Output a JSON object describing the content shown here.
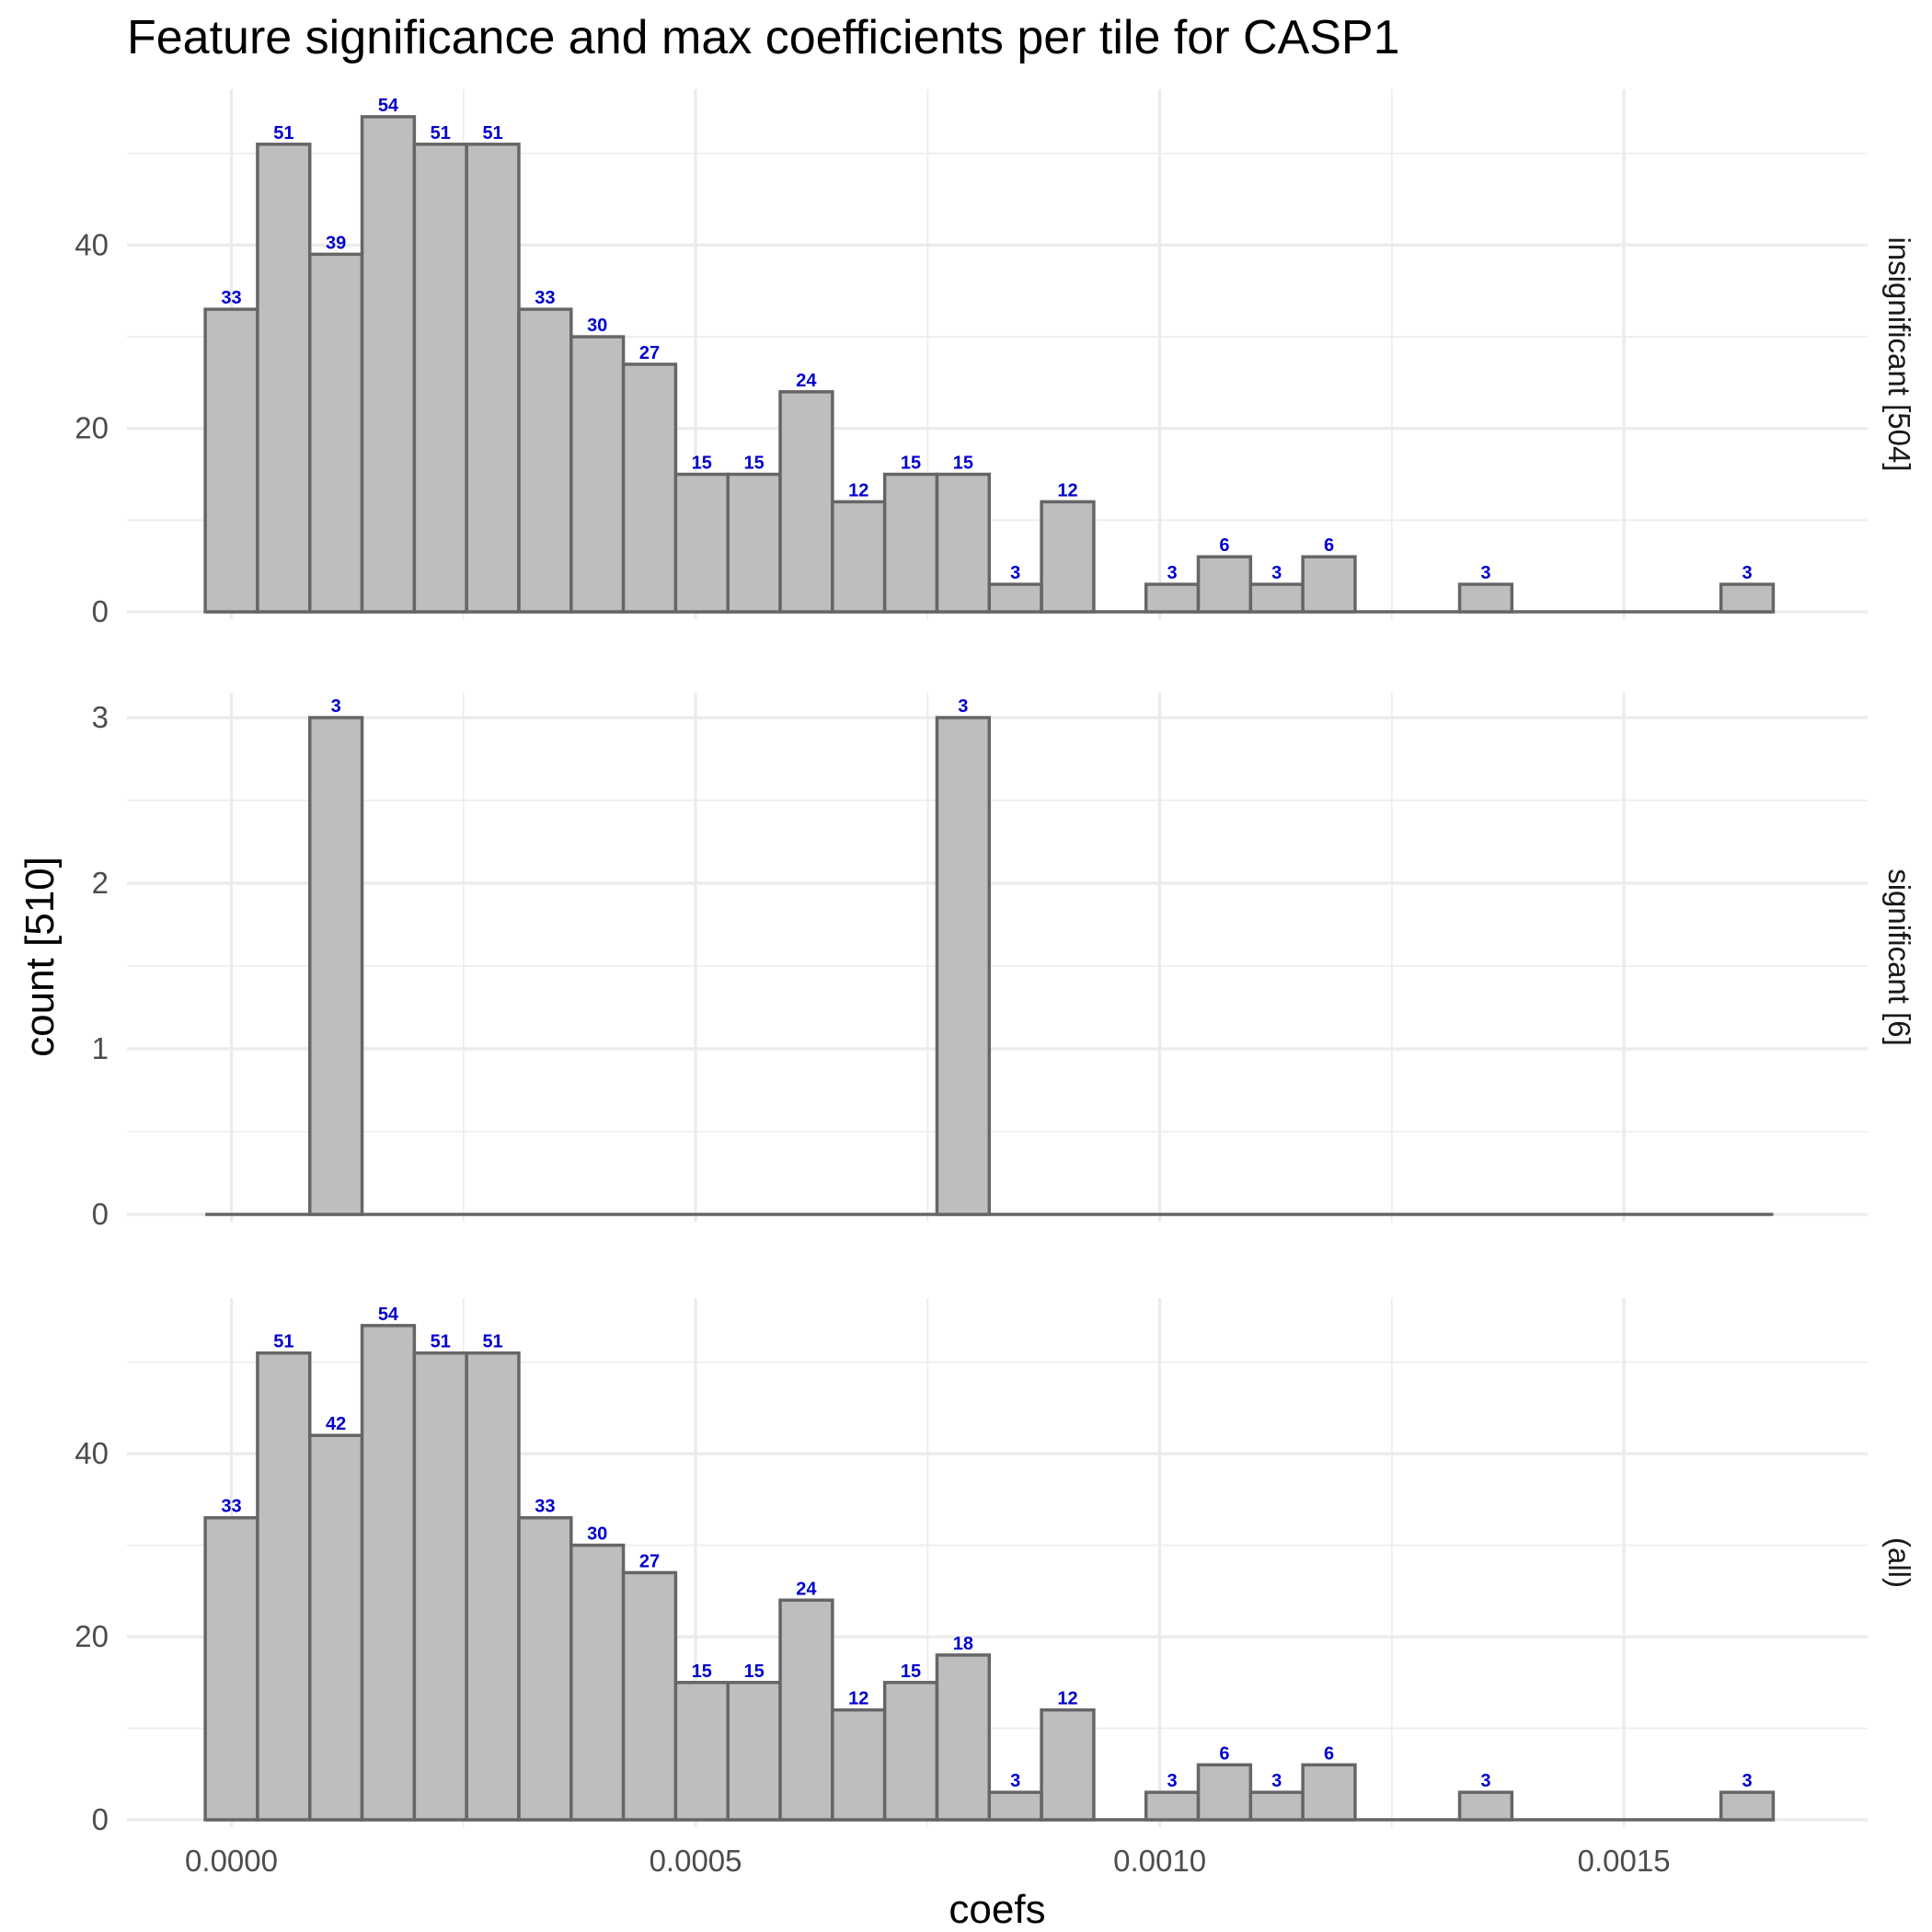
{
  "chart_data": {
    "type": "bar",
    "title": "Feature significance and max coefficients per tile for CASP1",
    "xlabel": "coefs",
    "ylabel": "count [510]",
    "xlim": [
      -0.0001125,
      0.0017625
    ],
    "x_ticks": [
      "0.0000",
      "0.0005",
      "0.0010",
      "0.0015"
    ],
    "x_tick_values": [
      0.0,
      0.0005,
      0.001,
      0.0015
    ],
    "bin_centers": [
      0.0,
      5.63e-05,
      0.0001126,
      0.0001689,
      0.0002252,
      0.0002815,
      0.0003378,
      0.0003941,
      0.0004504,
      0.0005067,
      0.000563,
      0.0006193,
      0.0006756,
      0.0007319,
      0.0007882,
      0.0008445,
      0.0009008,
      0.0009571,
      0.0010134,
      0.0010697,
      0.001126,
      0.0011823,
      0.0012386,
      0.0012949,
      0.0013512,
      0.0014075,
      0.0014638,
      0.0015201,
      0.0015764,
      0.0016327
    ],
    "bin_width": 5.63e-05,
    "grid": true,
    "facets": [
      {
        "strip_label": "insignificant [504]",
        "ylim": [
          0,
          57
        ],
        "y_ticks": [
          0,
          20,
          40
        ],
        "values": [
          33,
          51,
          39,
          54,
          51,
          51,
          33,
          30,
          27,
          15,
          15,
          24,
          12,
          15,
          15,
          3,
          12,
          0,
          3,
          6,
          3,
          6,
          0,
          0,
          3,
          0,
          0,
          0,
          0,
          3
        ]
      },
      {
        "strip_label": "significant [6]",
        "ylim": [
          0,
          3.15
        ],
        "y_ticks": [
          0,
          1,
          2,
          3
        ],
        "values": [
          0,
          0,
          3,
          0,
          0,
          0,
          0,
          0,
          0,
          0,
          0,
          0,
          0,
          0,
          3,
          0,
          0,
          0,
          0,
          0,
          0,
          0,
          0,
          0,
          0,
          0,
          0,
          0,
          0,
          0
        ]
      },
      {
        "strip_label": "(all)",
        "ylim": [
          0,
          57
        ],
        "y_ticks": [
          0,
          20,
          40
        ],
        "values": [
          33,
          51,
          42,
          54,
          51,
          51,
          33,
          30,
          27,
          15,
          15,
          24,
          12,
          15,
          18,
          3,
          12,
          0,
          3,
          6,
          3,
          6,
          0,
          0,
          3,
          0,
          0,
          0,
          0,
          3
        ]
      }
    ]
  }
}
